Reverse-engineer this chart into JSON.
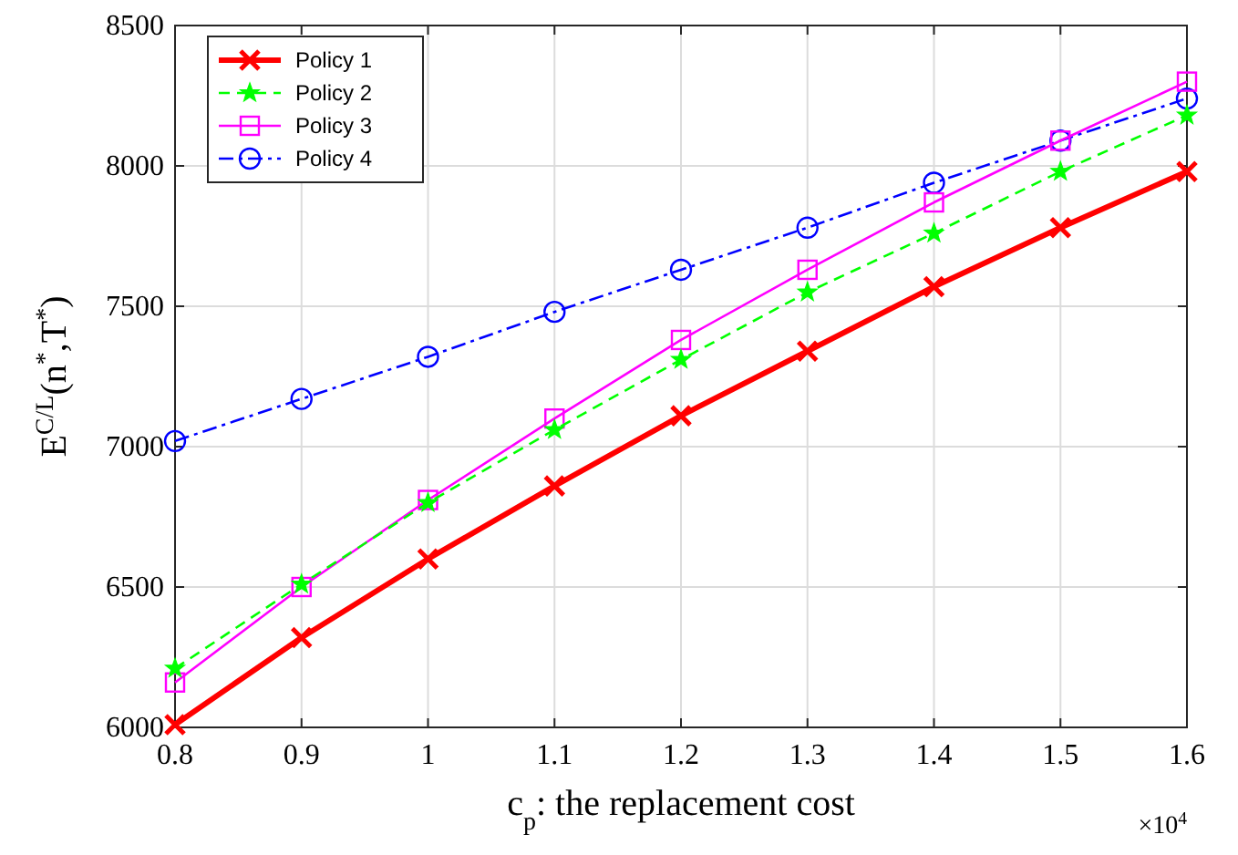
{
  "chart_data": {
    "type": "line",
    "xlabel": "c$_{p}$: the replacement cost",
    "ylabel": "E$^{C/L}$(n$^{*}$,T$^{*}$)",
    "x": [
      0.8,
      0.9,
      1.0,
      1.1,
      1.2,
      1.3,
      1.4,
      1.5,
      1.6
    ],
    "xlim": [
      0.8,
      1.6
    ],
    "xticks": [
      0.8,
      0.9,
      1,
      1.1,
      1.2,
      1.3,
      1.4,
      1.5,
      1.6
    ],
    "ylim": [
      6000,
      8500
    ],
    "yticks": [
      6000,
      6500,
      7000,
      7500,
      8000,
      8500
    ],
    "grid": true,
    "legend": "top left",
    "annotations": [
      "×10$^{4}$"
    ],
    "series": [
      {
        "name": "Policy 1",
        "color": "#ff0000",
        "marker": "cross",
        "line_style": "solid",
        "values": [
          6010,
          6320,
          6600,
          6860,
          7110,
          7340,
          7570,
          7780,
          7980
        ]
      },
      {
        "name": "Policy 2",
        "color": "#00ff00",
        "marker": "star",
        "line_style": "dashed",
        "values": [
          6210,
          6510,
          6800,
          7060,
          7310,
          7550,
          7760,
          7980,
          8180
        ]
      },
      {
        "name": "Policy 3",
        "color": "#ff00ff",
        "marker": "square",
        "line_style": "solid",
        "values": [
          6160,
          6500,
          6810,
          7100,
          7380,
          7630,
          7870,
          8090,
          8300
        ]
      },
      {
        "name": "Policy 4",
        "color": "#0000ff",
        "marker": "circle",
        "line_style": "dashdot",
        "values": [
          7020,
          7170,
          7320,
          7480,
          7630,
          7780,
          7940,
          8090,
          8240
        ]
      }
    ]
  }
}
